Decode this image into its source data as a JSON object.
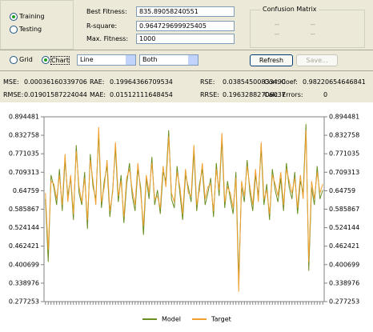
{
  "dataset": {
    "training": "Training",
    "testing": "Testing"
  },
  "fitness": {
    "best_label": "Best Fitness:",
    "best": "835.89058240551",
    "rsq_label": "R-square:",
    "rsq": "0.964729699925405",
    "max_label": "Max. Fitness:",
    "max": "1000"
  },
  "confusion": {
    "title": "Confusion Matrix",
    "cells": [
      "--",
      "--",
      "--",
      "--"
    ]
  },
  "view": {
    "grid": "Grid",
    "chart": "Chart",
    "chart_type": "Line",
    "show": "Both",
    "refresh": "Refresh",
    "save": "Save..."
  },
  "stats": {
    "mse_label": "MSE:",
    "mse": "0.00036160339706",
    "rae_label": "RAE:",
    "rae": "0.19964366709534",
    "rse_label": "RSE:",
    "rse": "0.03854500833490",
    "corr_label": "Corr. Coef:",
    "corr": "0.98220654646841",
    "rmse_label": "RMSE:",
    "rmse": "0.01901587224044",
    "mae_label": "MAE:",
    "mae": "0.01512111648454",
    "rrse_label": "RRSE:",
    "rrse": "0.19632882706037",
    "err_label": "Calc. Errors:",
    "err": "0"
  },
  "chart_data": {
    "type": "line",
    "ylim": [
      0.277253,
      0.894481
    ],
    "yticks": [
      0.277253,
      0.338976,
      0.400699,
      0.462421,
      0.524144,
      0.585867,
      0.64759,
      0.709313,
      0.771035,
      0.832758,
      0.894481
    ],
    "series": [
      {
        "name": "Model",
        "color": "#6b8e23",
        "values": [
          0.62,
          0.41,
          0.7,
          0.66,
          0.6,
          0.72,
          0.58,
          0.75,
          0.63,
          0.69,
          0.55,
          0.8,
          0.64,
          0.6,
          0.71,
          0.52,
          0.77,
          0.66,
          0.62,
          0.84,
          0.59,
          0.68,
          0.73,
          0.56,
          0.65,
          0.79,
          0.61,
          0.7,
          0.54,
          0.67,
          0.74,
          0.63,
          0.58,
          0.72,
          0.66,
          0.5,
          0.69,
          0.62,
          0.76,
          0.6,
          0.65,
          0.57,
          0.71,
          0.68,
          0.85,
          0.62,
          0.59,
          0.73,
          0.64,
          0.55,
          0.7,
          0.66,
          0.61,
          0.78,
          0.58,
          0.67,
          0.72,
          0.6,
          0.64,
          0.69,
          0.56,
          0.74,
          0.63,
          0.82,
          0.59,
          0.68,
          0.62,
          0.57,
          0.71,
          0.35,
          0.66,
          0.61,
          0.75,
          0.64,
          0.58,
          0.7,
          0.63,
          0.79,
          0.6,
          0.67,
          0.55,
          0.72,
          0.65,
          0.61,
          0.69,
          0.58,
          0.74,
          0.66,
          0.62,
          0.71,
          0.57,
          0.68,
          0.64,
          0.87,
          0.38,
          0.66,
          0.6,
          0.73,
          0.62,
          0.65
        ]
      },
      {
        "name": "Target",
        "color": "#f0a030",
        "values": [
          0.64,
          0.45,
          0.68,
          0.67,
          0.62,
          0.7,
          0.6,
          0.77,
          0.61,
          0.7,
          0.57,
          0.78,
          0.66,
          0.61,
          0.69,
          0.55,
          0.75,
          0.68,
          0.6,
          0.86,
          0.61,
          0.66,
          0.75,
          0.58,
          0.64,
          0.81,
          0.63,
          0.68,
          0.56,
          0.69,
          0.72,
          0.65,
          0.6,
          0.74,
          0.64,
          0.53,
          0.7,
          0.64,
          0.74,
          0.62,
          0.63,
          0.59,
          0.73,
          0.66,
          0.83,
          0.64,
          0.61,
          0.71,
          0.66,
          0.57,
          0.72,
          0.64,
          0.63,
          0.8,
          0.6,
          0.65,
          0.74,
          0.62,
          0.66,
          0.67,
          0.58,
          0.72,
          0.65,
          0.84,
          0.61,
          0.66,
          0.64,
          0.59,
          0.69,
          0.31,
          0.68,
          0.63,
          0.73,
          0.66,
          0.6,
          0.72,
          0.61,
          0.81,
          0.62,
          0.65,
          0.57,
          0.7,
          0.67,
          0.63,
          0.71,
          0.6,
          0.72,
          0.68,
          0.64,
          0.69,
          0.59,
          0.7,
          0.62,
          0.85,
          0.41,
          0.68,
          0.62,
          0.71,
          0.64,
          0.67
        ]
      }
    ]
  }
}
